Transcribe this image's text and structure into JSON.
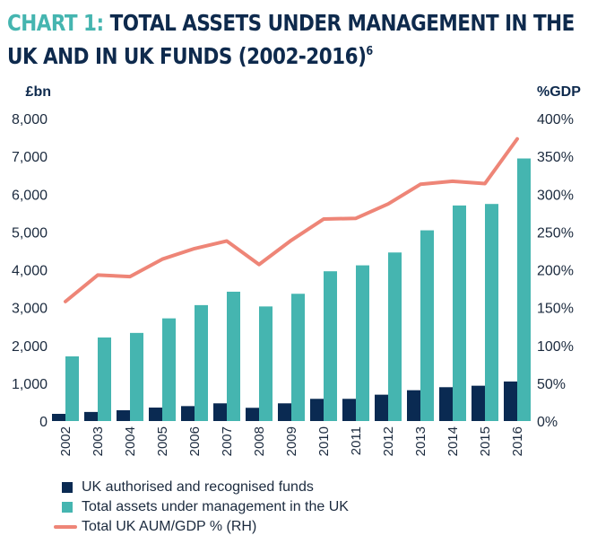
{
  "title": {
    "prefix": "CHART 1:",
    "line1": "TOTAL ASSETS UNDER MANAGEMENT IN THE",
    "line2": "UK AND IN UK FUNDS (2002-2016)",
    "footnote": "6"
  },
  "colors": {
    "navy": "#0a2a52",
    "teal": "#45b5b0",
    "salmon": "#ee8577",
    "title_accent": "#45b5b0",
    "title_main": "#0e2a4d"
  },
  "chart_data": {
    "type": "bar",
    "title": "CHART 1: TOTAL ASSETS UNDER MANAGEMENT IN THE UK AND IN UK FUNDS (2002-2016)",
    "xlabel": "",
    "ylabel": "£bn",
    "ylabel_right": "%GDP",
    "categories": [
      "2002",
      "2003",
      "2004",
      "2005",
      "2006",
      "2007",
      "2008",
      "2009",
      "2010",
      "2011",
      "2012",
      "2013",
      "2014",
      "2015",
      "2016"
    ],
    "ylim": [
      0,
      8000
    ],
    "ylim_right": [
      0,
      400
    ],
    "yticks": [
      "0",
      "1,000",
      "2,000",
      "3,000",
      "4,000",
      "5,000",
      "6,000",
      "7,000",
      "8,000"
    ],
    "yticks_right": [
      "0%",
      "50%",
      "100%",
      "150%",
      "200%",
      "250%",
      "300%",
      "350%",
      "400%"
    ],
    "grid": false,
    "legend_position": "bottom-left",
    "series": [
      {
        "name": "UK authorised and recognised funds",
        "type": "bar",
        "axis": "left",
        "values": [
          190,
          240,
          285,
          356,
          395,
          468,
          350,
          468,
          587,
          587,
          697,
          815,
          895,
          934,
          1045
        ]
      },
      {
        "name": "Total assets under management in the UK",
        "type": "bar",
        "axis": "left",
        "values": [
          1710,
          2210,
          2330,
          2715,
          3065,
          3420,
          3030,
          3365,
          3960,
          4117,
          4457,
          5043,
          5700,
          5740,
          6943
        ]
      },
      {
        "name": "Total UK AUM/GDP % (RH)",
        "type": "line",
        "axis": "right",
        "values": [
          158,
          193,
          191,
          214,
          228,
          238,
          207,
          239,
          267,
          268,
          287,
          313,
          317,
          314,
          373
        ]
      }
    ]
  }
}
